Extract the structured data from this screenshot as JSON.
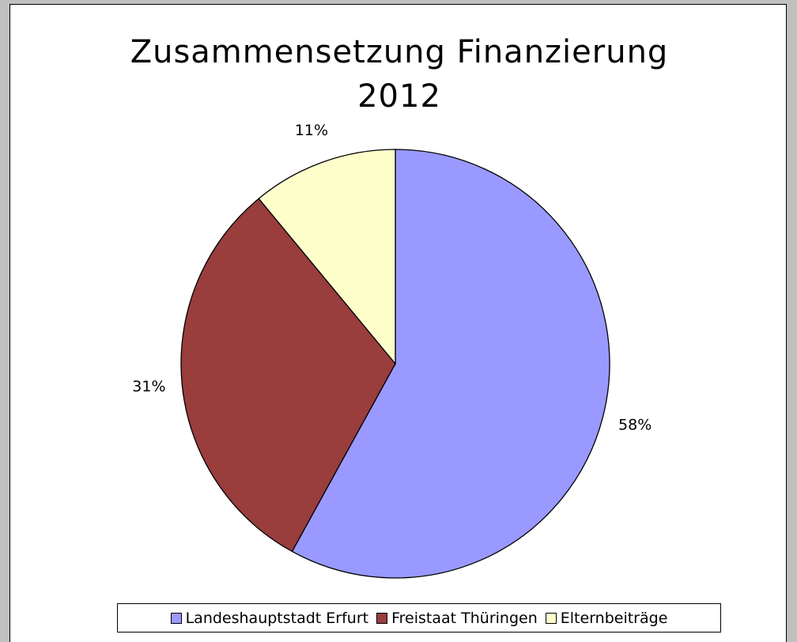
{
  "chart_data": {
    "type": "pie",
    "title": "Zusammensetzung Finanzierung 2012",
    "categories": [
      "Landeshauptstadt Erfurt",
      "Freistaat Thüringen",
      "Elternbeiträge"
    ],
    "values": [
      58,
      31,
      11
    ],
    "value_labels": [
      "58%",
      "31%",
      "11%"
    ],
    "colors": [
      "#9999ff",
      "#993d3d",
      "#ffffcc"
    ],
    "legend": "bottom"
  }
}
